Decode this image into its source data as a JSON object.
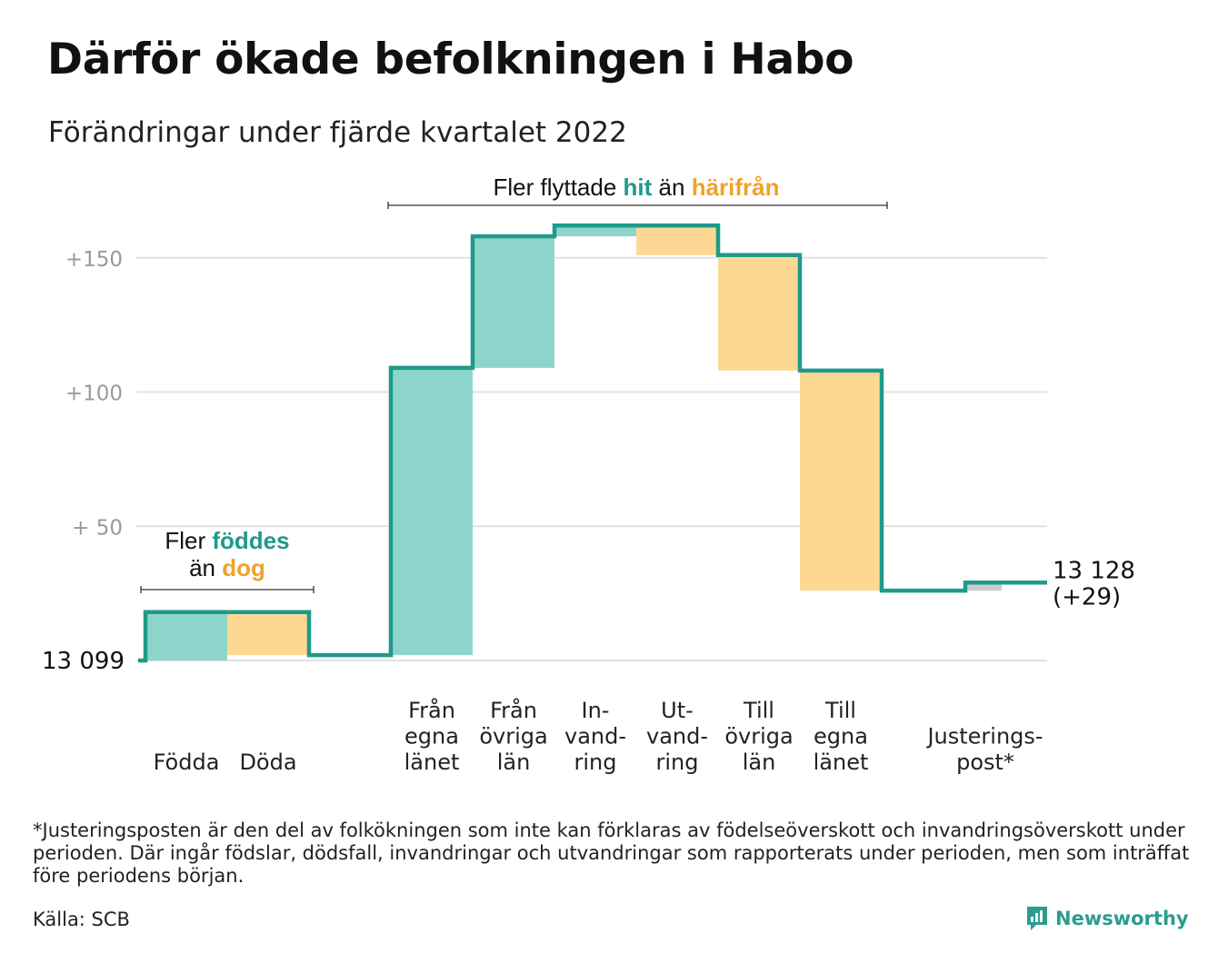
{
  "title": "Därför ökade befolkningen i Habo",
  "subtitle": "Förändringar under fjärde kvartalet 2022",
  "colors": {
    "increase": "#8dd5cb",
    "decrease": "#fcd892",
    "adjustment": "#cccccc",
    "line": "#1f9a8a",
    "teal_text": "#1f9a8a",
    "orange_text": "#f2a22a",
    "grid": "#e2e2e2"
  },
  "annotations": {
    "natural": {
      "line1_a": "Fler ",
      "line1_b": "föddes",
      "line2_a": "än ",
      "line2_b": "dog"
    },
    "migration": {
      "a": "Fler flyttade ",
      "b": "hit",
      "c": " än ",
      "d": "härifrån"
    }
  },
  "chart_data": {
    "type": "waterfall",
    "start_label": "13 099",
    "end_label": "13 128",
    "end_change": "(+29)",
    "ytick_labels": [
      "+150",
      "+100",
      "+ 50"
    ],
    "yticks": [
      150,
      100,
      50
    ],
    "ylim": [
      0,
      163
    ],
    "steps": [
      {
        "lines": [
          "Födda"
        ],
        "value": 18
      },
      {
        "lines": [
          "Döda"
        ],
        "value": -16
      },
      {
        "lines": [
          "Från",
          "egna",
          "länet"
        ],
        "value": 107
      },
      {
        "lines": [
          "Från",
          "övriga",
          "län"
        ],
        "value": 49
      },
      {
        "lines": [
          "In-",
          "vand-",
          "ring"
        ],
        "value": 4
      },
      {
        "lines": [
          "Ut-",
          "vand-",
          "ring"
        ],
        "value": -11
      },
      {
        "lines": [
          "Till",
          "övriga",
          "län"
        ],
        "value": -43
      },
      {
        "lines": [
          "Till",
          "egna",
          "länet"
        ],
        "value": -82
      },
      {
        "lines": [
          "Justerings-",
          "post*"
        ],
        "value": 3
      }
    ],
    "total_change": 29
  },
  "footnote": "*Justeringsposten är den del av folkökningen som inte kan förklaras av födelseöverskott och invandringsöverskott under perioden. Där ingår födslar, dödsfall, invandringar och utvandringar som rapporterats under perioden, men som inträffat före periodens början.",
  "source": "Källa: SCB",
  "brand": {
    "name": "Newsworthy",
    "icon": "newsworthy-logo-icon"
  }
}
